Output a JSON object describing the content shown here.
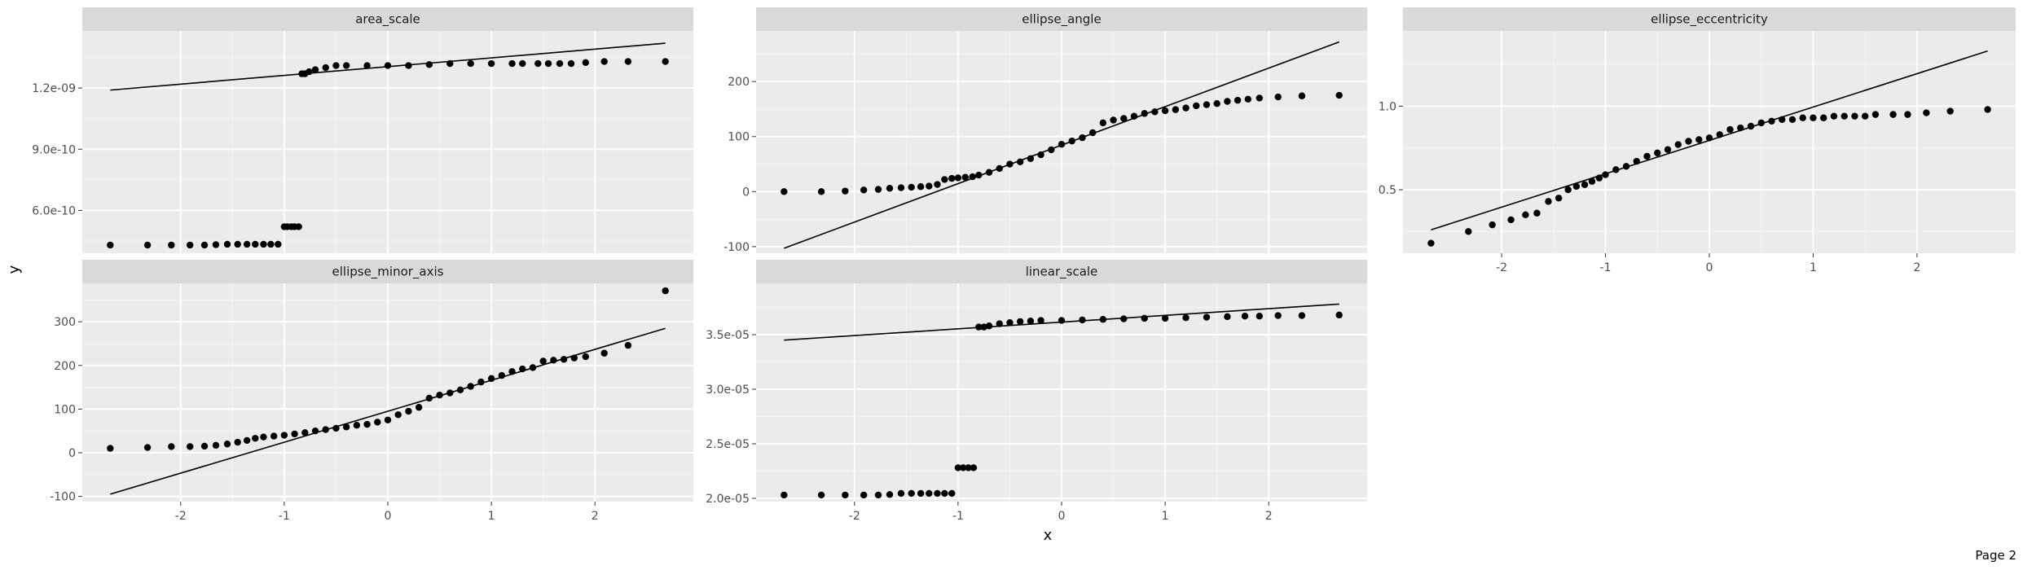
{
  "page_label": "Page 2",
  "x_axis_title": "x",
  "y_axis_title": "y",
  "colors": {
    "panel_bg": "#EBEBEB",
    "strip_bg": "#D9D9D9",
    "grid_major": "#FFFFFF",
    "grid_minor": "#F5F5F5",
    "point": "#000000",
    "line": "#000000"
  },
  "chart_data": [
    {
      "type": "scatter",
      "title": "area_scale",
      "xlim": [
        -2.95,
        2.95
      ],
      "ylim": [
        3.9e-10,
        1.48e-09
      ],
      "y_ticks": [
        6e-10,
        9e-10,
        1.2e-09
      ],
      "y_tick_labels": [
        "6.0e-10",
        "9.0e-10",
        "1.2e-09"
      ],
      "x_ticks": [],
      "x_tick_labels": [],
      "reference_line": [
        [
          -2.68,
          1.19e-09
        ],
        [
          2.68,
          1.42e-09
        ]
      ],
      "points": {
        "x": [
          -2.68,
          -2.32,
          -2.09,
          -1.91,
          -1.77,
          -1.66,
          -1.55,
          -1.45,
          -1.36,
          -1.28,
          -1.2,
          -1.13,
          -1.06,
          -1.0,
          -0.97,
          -0.93,
          -0.9,
          -0.86,
          -0.83,
          -0.8,
          -0.76,
          -0.7,
          -0.6,
          -0.5,
          -0.4,
          -0.2,
          0.0,
          0.2,
          0.4,
          0.6,
          0.8,
          1.0,
          1.2,
          1.3,
          1.45,
          1.55,
          1.66,
          1.77,
          1.91,
          2.09,
          2.32,
          2.68
        ],
        "y": [
          4.3e-10,
          4.3e-10,
          4.3e-10,
          4.3e-10,
          4.3e-10,
          4.32e-10,
          4.34e-10,
          4.34e-10,
          4.34e-10,
          4.34e-10,
          4.34e-10,
          4.34e-10,
          4.34e-10,
          5.2e-10,
          5.2e-10,
          5.2e-10,
          5.2e-10,
          5.2e-10,
          1.27e-09,
          1.27e-09,
          1.28e-09,
          1.29e-09,
          1.3e-09,
          1.31e-09,
          1.31e-09,
          1.31e-09,
          1.31e-09,
          1.31e-09,
          1.315e-09,
          1.32e-09,
          1.32e-09,
          1.32e-09,
          1.32e-09,
          1.32e-09,
          1.32e-09,
          1.32e-09,
          1.32e-09,
          1.32e-09,
          1.325e-09,
          1.33e-09,
          1.33e-09,
          1.33e-09
        ]
      }
    },
    {
      "type": "scatter",
      "title": "ellipse_angle",
      "xlim": [
        -2.95,
        2.95
      ],
      "ylim": [
        -112,
        292
      ],
      "y_ticks": [
        -100,
        0,
        100,
        200
      ],
      "y_tick_labels": [
        "-100",
        "0",
        "100",
        "200"
      ],
      "x_ticks": [],
      "x_tick_labels": [],
      "reference_line": [
        [
          -2.68,
          -103
        ],
        [
          2.68,
          272
        ]
      ],
      "points": {
        "x": [
          -2.68,
          -2.32,
          -2.09,
          -1.91,
          -1.77,
          -1.66,
          -1.55,
          -1.45,
          -1.36,
          -1.28,
          -1.2,
          -1.13,
          -1.06,
          -1.0,
          -0.93,
          -0.86,
          -0.8,
          -0.7,
          -0.6,
          -0.5,
          -0.4,
          -0.3,
          -0.2,
          -0.1,
          0.0,
          0.1,
          0.2,
          0.3,
          0.4,
          0.5,
          0.6,
          0.7,
          0.8,
          0.9,
          1.0,
          1.1,
          1.2,
          1.3,
          1.4,
          1.5,
          1.6,
          1.7,
          1.8,
          1.91,
          2.09,
          2.32,
          2.68
        ],
        "y": [
          0,
          0,
          1,
          3,
          4,
          6,
          7,
          8,
          9,
          10,
          13,
          22,
          24,
          25,
          26,
          27,
          30,
          35,
          42,
          50,
          54,
          60,
          67,
          76,
          86,
          92,
          98,
          107,
          125,
          130,
          133,
          137,
          142,
          145,
          147,
          149,
          152,
          156,
          158,
          160,
          164,
          166,
          168,
          170,
          172,
          174,
          175
        ]
      }
    },
    {
      "type": "scatter",
      "title": "ellipse_eccentricity",
      "xlim": [
        -2.95,
        2.95
      ],
      "ylim": [
        0.12,
        1.45
      ],
      "y_ticks": [
        0.5,
        1.0
      ],
      "y_tick_labels": [
        "0.5",
        "1.0"
      ],
      "x_ticks": [
        -2,
        -1,
        0,
        1,
        2
      ],
      "x_tick_labels": [
        "-2",
        "-1",
        "0",
        "1",
        "2"
      ],
      "reference_line": [
        [
          -2.68,
          0.26
        ],
        [
          2.68,
          1.33
        ]
      ],
      "points": {
        "x": [
          -2.68,
          -2.32,
          -2.09,
          -1.91,
          -1.77,
          -1.66,
          -1.55,
          -1.45,
          -1.36,
          -1.28,
          -1.2,
          -1.13,
          -1.06,
          -1.0,
          -0.9,
          -0.8,
          -0.7,
          -0.6,
          -0.5,
          -0.4,
          -0.3,
          -0.2,
          -0.1,
          0.0,
          0.1,
          0.2,
          0.3,
          0.4,
          0.5,
          0.6,
          0.7,
          0.8,
          0.9,
          1.0,
          1.1,
          1.2,
          1.3,
          1.4,
          1.5,
          1.6,
          1.77,
          1.91,
          2.09,
          2.32,
          2.68
        ],
        "y": [
          0.18,
          0.25,
          0.29,
          0.32,
          0.35,
          0.36,
          0.43,
          0.45,
          0.5,
          0.52,
          0.53,
          0.55,
          0.57,
          0.59,
          0.62,
          0.64,
          0.67,
          0.7,
          0.72,
          0.74,
          0.77,
          0.79,
          0.8,
          0.81,
          0.83,
          0.86,
          0.87,
          0.88,
          0.9,
          0.91,
          0.92,
          0.92,
          0.93,
          0.93,
          0.93,
          0.94,
          0.94,
          0.94,
          0.94,
          0.95,
          0.95,
          0.95,
          0.96,
          0.97,
          0.98
        ]
      }
    },
    {
      "type": "scatter",
      "title": "ellipse_minor_axis",
      "xlim": [
        -2.95,
        2.95
      ],
      "ylim": [
        -112,
        388
      ],
      "y_ticks": [
        -100,
        0,
        100,
        200,
        300
      ],
      "y_tick_labels": [
        "-100",
        "0",
        "100",
        "200",
        "300"
      ],
      "x_ticks": [
        -2,
        -1,
        0,
        1,
        2
      ],
      "x_tick_labels": [
        "-2",
        "-1",
        "0",
        "1",
        "2"
      ],
      "reference_line": [
        [
          -2.68,
          -95
        ],
        [
          2.68,
          285
        ]
      ],
      "points": {
        "x": [
          -2.68,
          -2.32,
          -2.09,
          -1.91,
          -1.77,
          -1.66,
          -1.55,
          -1.45,
          -1.36,
          -1.28,
          -1.2,
          -1.1,
          -1.0,
          -0.9,
          -0.8,
          -0.7,
          -0.6,
          -0.5,
          -0.4,
          -0.3,
          -0.2,
          -0.1,
          0.0,
          0.1,
          0.2,
          0.3,
          0.4,
          0.5,
          0.6,
          0.7,
          0.8,
          0.9,
          1.0,
          1.1,
          1.2,
          1.3,
          1.4,
          1.5,
          1.6,
          1.7,
          1.8,
          1.91,
          2.09,
          2.32,
          2.68
        ],
        "y": [
          10,
          12,
          14,
          14,
          15,
          17,
          20,
          24,
          28,
          33,
          36,
          38,
          40,
          43,
          46,
          50,
          53,
          56,
          59,
          63,
          65,
          70,
          75,
          87,
          95,
          104,
          125,
          132,
          137,
          144,
          152,
          162,
          170,
          177,
          186,
          192,
          195,
          210,
          212,
          214,
          217,
          220,
          228,
          246,
          371
        ]
      }
    },
    {
      "type": "scatter",
      "title": "linear_scale",
      "xlim": [
        -2.95,
        2.95
      ],
      "ylim": [
        1.97e-05,
        3.97e-05
      ],
      "y_ticks": [
        2e-05,
        2.5e-05,
        3e-05,
        3.5e-05
      ],
      "y_tick_labels": [
        "2.0e-05",
        "2.5e-05",
        "3.0e-05",
        "3.5e-05"
      ],
      "x_ticks": [
        -2,
        -1,
        0,
        1,
        2
      ],
      "x_tick_labels": [
        "-2",
        "-1",
        "0",
        "1",
        "2"
      ],
      "reference_line": [
        [
          -2.68,
          3.45e-05
        ],
        [
          2.68,
          3.78e-05
        ]
      ],
      "points": {
        "x": [
          -2.68,
          -2.32,
          -2.09,
          -1.91,
          -1.77,
          -1.66,
          -1.55,
          -1.45,
          -1.36,
          -1.28,
          -1.2,
          -1.13,
          -1.06,
          -1.0,
          -0.95,
          -0.9,
          -0.85,
          -0.8,
          -0.75,
          -0.7,
          -0.6,
          -0.5,
          -0.4,
          -0.3,
          -0.2,
          0.0,
          0.2,
          0.4,
          0.6,
          0.8,
          1.0,
          1.2,
          1.4,
          1.6,
          1.77,
          1.91,
          2.09,
          2.32,
          2.68
        ],
        "y": [
          2.03e-05,
          2.03e-05,
          2.03e-05,
          2.03e-05,
          2.03e-05,
          2.035e-05,
          2.045e-05,
          2.045e-05,
          2.045e-05,
          2.045e-05,
          2.045e-05,
          2.045e-05,
          2.045e-05,
          2.28e-05,
          2.28e-05,
          2.28e-05,
          2.28e-05,
          3.57e-05,
          3.57e-05,
          3.58e-05,
          3.6e-05,
          3.61e-05,
          3.62e-05,
          3.625e-05,
          3.63e-05,
          3.63e-05,
          3.635e-05,
          3.64e-05,
          3.645e-05,
          3.65e-05,
          3.65e-05,
          3.655e-05,
          3.66e-05,
          3.665e-05,
          3.67e-05,
          3.67e-05,
          3.675e-05,
          3.675e-05,
          3.68e-05
        ]
      }
    }
  ]
}
